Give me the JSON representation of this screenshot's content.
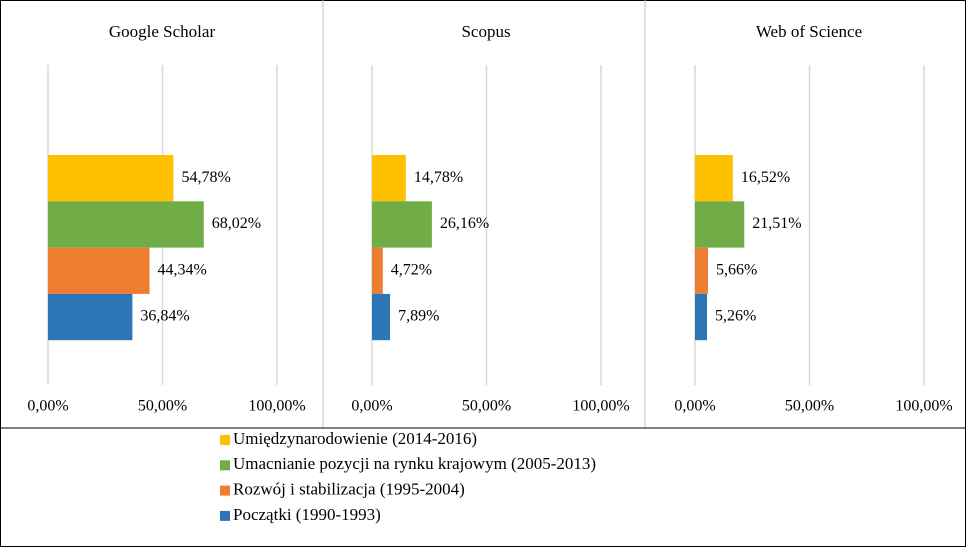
{
  "chart_data": {
    "type": "bar",
    "orientation": "horizontal",
    "categories": [
      "Google Scholar",
      "Scopus",
      "Web of Science"
    ],
    "series": [
      {
        "name": "Umiędzynarodowienie (2014-2016)",
        "color": "#FFC000",
        "values": [
          54.78,
          14.78,
          16.52
        ],
        "value_labels": [
          "54,78%",
          "14,78%",
          "16,52%"
        ]
      },
      {
        "name": "Umacnianie pozycji na rynku krajowym (2005-2013)",
        "color": "#70AD47",
        "values": [
          68.02,
          26.16,
          21.51
        ],
        "value_labels": [
          "68,02%",
          "26,16%",
          "21,51%"
        ]
      },
      {
        "name": "Rozwój i stabilizacja (1995-2004)",
        "color": "#ED7D31",
        "values": [
          44.34,
          4.72,
          5.66
        ],
        "value_labels": [
          "44,34%",
          "4,72%",
          "5,66%"
        ]
      },
      {
        "name": "Początki (1990-1993)",
        "color": "#2E75B6",
        "values": [
          36.84,
          7.89,
          5.26
        ],
        "value_labels": [
          "36,84%",
          "7,89%",
          "5,26%"
        ]
      }
    ],
    "xlim": [
      0,
      100
    ],
    "xticks": [
      {
        "value": 0,
        "label": "0,00%"
      },
      {
        "value": 50,
        "label": "50,00%"
      },
      {
        "value": 100,
        "label": "100,00%"
      }
    ],
    "grid": true
  }
}
